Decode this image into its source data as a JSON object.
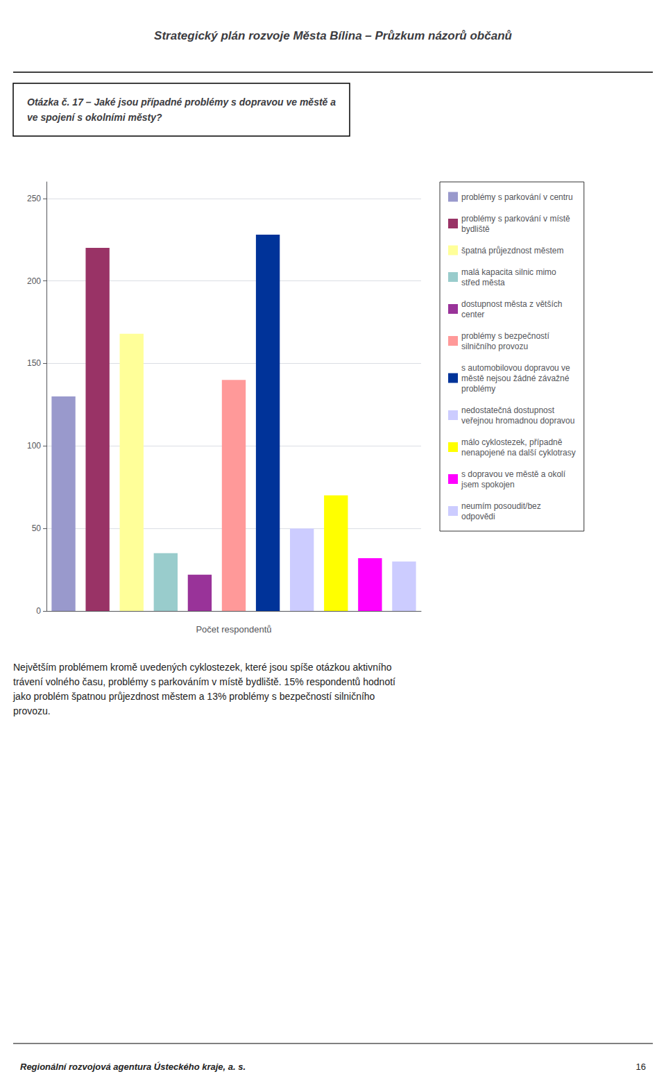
{
  "chart_data": {
    "type": "bar",
    "title": "Strategický plán rozvoje Města Bílina – Průzkum názorů občanů",
    "subtitle": "Otázka č. 17 – Jaké jsou případné problémy s dopravou ve městě a\nve spojení s okolními městy?",
    "x_label": "Počet respondentů",
    "categories": [
      "problémy s parkování v centru",
      "problémy s parkování v místě\nbydliště",
      "špatná průjezdnost městem",
      "malá kapacita silnic mimo\nstřed města",
      "dostupnost města z větších\ncenter",
      "problémy s bezpečností\nsilničního provozu",
      "s automobilovou dopravou ve\nměstě nejsou žádné závažné\nproblémy",
      "nedostatečná dostupnost\nveřejnou hromadnou dopravou",
      "málo cyklostezek, případně\nnenapojené na další cyklotrasy",
      "s dopravou ve městě a okolí\njsem spokojen",
      "neumím posoudit/bez\nodpovědi"
    ],
    "values": [
      130,
      220,
      168,
      35,
      22,
      140,
      228,
      50,
      70,
      32,
      30
    ],
    "colors": [
      "#9999CC",
      "#993366",
      "#FFFF99",
      "#99CCCC",
      "#993399",
      "#FF9999",
      "#003399",
      "#CCCCFF",
      "#FFFF00",
      "#FF00FF",
      "#CCCCFF"
    ],
    "ylim": [
      0,
      260
    ],
    "yticks": [
      0,
      50,
      100,
      150,
      200,
      250
    ],
    "grid": true,
    "legend": "right",
    "tick_labels": "y",
    "annotations": [
      "Největším problémem kromě uvedených cyklostezek, které jsou spíše otázkou aktivního\ntrávení volného času, problémy s parkováním v místě bydliště. 15% respondentů hodnotí\njako problém špatnou průjezdnost městem a 13% problémy s bezpečností silničního\nprovozu.",
      "Regionální rozvojová agentura Ústeckého kraje, a. s.",
      "16"
    ]
  }
}
